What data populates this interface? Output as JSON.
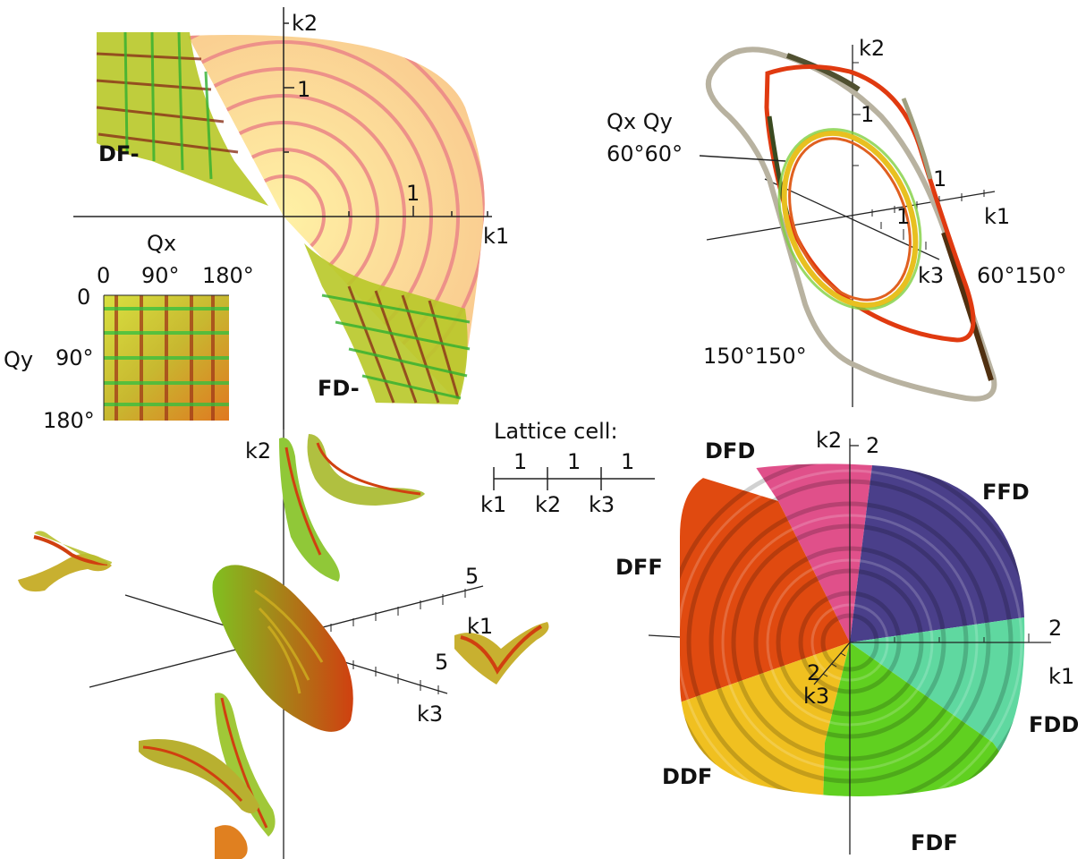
{
  "top_left": {
    "axis_k1": "k1",
    "axis_k2": "k2",
    "tick_k1": "1",
    "tick_k2": "1",
    "region_df": "DF-",
    "region_fd": "FD-"
  },
  "legend_square": {
    "qx_label": "Qx",
    "qy_label": "Qy",
    "qx_ticks": [
      "0",
      "90°",
      "180°"
    ],
    "qy_ticks": [
      "0",
      "90°",
      "180°"
    ]
  },
  "top_right": {
    "axis_k1": "k1",
    "axis_k2": "k2",
    "axis_k3": "k3",
    "tick_k1": "1",
    "tick_k2": "1",
    "tick_k3": "1",
    "tune_header": "Qx Qy",
    "tune_60_60": "60°60°",
    "tune_60_150": "60°150°",
    "tune_150_150": "150°150°"
  },
  "lattice_cell": {
    "title": "Lattice cell:",
    "lengths": [
      "1",
      "1",
      "1"
    ],
    "magnets": [
      "k1",
      "k2",
      "k3"
    ]
  },
  "bottom_left": {
    "axis_k1": "k1",
    "axis_k2": "k2",
    "axis_k3": "k3",
    "tick_k1": "5",
    "tick_k3": "5"
  },
  "bottom_right": {
    "axis_k1": "k1",
    "axis_k2": "k2",
    "axis_k3": "k3",
    "tick_k1": "2",
    "tick_k2": "2",
    "tick_k3": "2",
    "regions": {
      "dfd": "DFD",
      "ffd": "FFD",
      "dff": "DFF",
      "fdd": "FDD",
      "ddf": "DDF",
      "fdf": "FDF"
    },
    "colors": {
      "dfd": "#e0508a",
      "ffd": "#4a3f8a",
      "dff": "#e04a10",
      "fdd": "#5fd8a0",
      "ddf": "#f0c020",
      "fdf": "#60d020"
    }
  }
}
